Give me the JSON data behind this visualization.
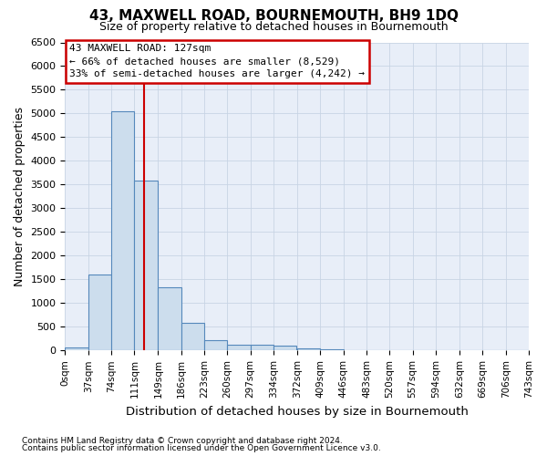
{
  "title": "43, MAXWELL ROAD, BOURNEMOUTH, BH9 1DQ",
  "subtitle": "Size of property relative to detached houses in Bournemouth",
  "xlabel": "Distribution of detached houses by size in Bournemouth",
  "ylabel": "Number of detached properties",
  "footer_line1": "Contains HM Land Registry data © Crown copyright and database right 2024.",
  "footer_line2": "Contains public sector information licensed under the Open Government Licence v3.0.",
  "bin_edges": [
    0,
    37,
    74,
    111,
    149,
    186,
    223,
    260,
    297,
    334,
    372,
    409,
    446,
    483,
    520,
    557,
    594,
    632,
    669,
    706,
    743
  ],
  "bar_heights": [
    60,
    1600,
    5050,
    3580,
    1330,
    590,
    220,
    125,
    115,
    95,
    45,
    18,
    8,
    4,
    2,
    1,
    0,
    0,
    0,
    0
  ],
  "bar_facecolor": "#ccdded",
  "bar_edgecolor": "#5588bb",
  "bar_linewidth": 0.8,
  "grid_color": "#c8d4e4",
  "background_color": "#e8eef8",
  "vline_x": 127,
  "vline_color": "#cc0000",
  "vline_linewidth": 1.5,
  "annotation_line1": "43 MAXWELL ROAD: 127sqm",
  "annotation_line2": "← 66% of detached houses are smaller (8,529)",
  "annotation_line3": "33% of semi-detached houses are larger (4,242) →",
  "annotation_box_color": "#cc0000",
  "ylim": [
    0,
    6500
  ],
  "tick_labels": [
    "0sqm",
    "37sqm",
    "74sqm",
    "111sqm",
    "149sqm",
    "186sqm",
    "223sqm",
    "260sqm",
    "297sqm",
    "334sqm",
    "372sqm",
    "409sqm",
    "446sqm",
    "483sqm",
    "520sqm",
    "557sqm",
    "594sqm",
    "632sqm",
    "669sqm",
    "706sqm",
    "743sqm"
  ],
  "yticks": [
    0,
    500,
    1000,
    1500,
    2000,
    2500,
    3000,
    3500,
    4000,
    4500,
    5000,
    5500,
    6000,
    6500
  ]
}
